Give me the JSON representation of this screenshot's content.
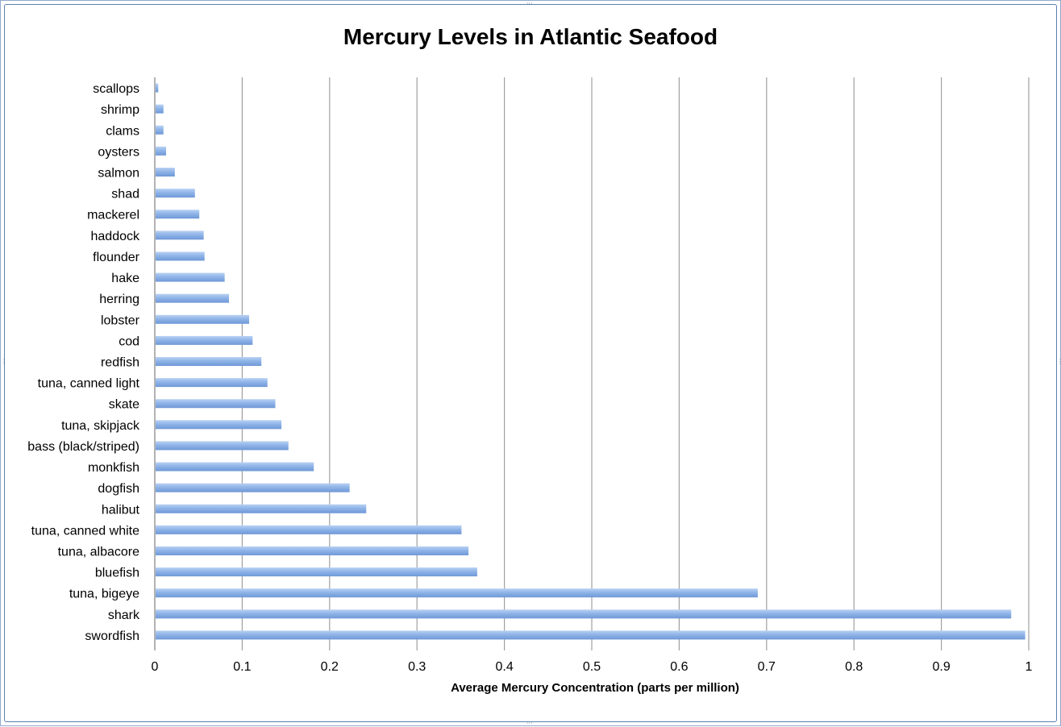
{
  "chart_data": {
    "type": "bar",
    "orientation": "horizontal",
    "title": "Mercury Levels in Atlantic Seafood",
    "xlabel": "Average Mercury Concentration (parts per million)",
    "ylabel": "",
    "xlim": [
      0,
      1
    ],
    "xticks": [
      "0",
      "0.1",
      "0.2",
      "0.3",
      "0.4",
      "0.5",
      "0.6",
      "0.7",
      "0.8",
      "0.9",
      "1"
    ],
    "grid": "vertical",
    "legend": "none",
    "bar_color": "#8fb4e8",
    "categories": [
      "scallops",
      "shrimp",
      "clams",
      "oysters",
      "salmon",
      "shad",
      "mackerel",
      "haddock",
      "flounder",
      "hake",
      "herring",
      "lobster",
      "cod",
      "redfish",
      "tuna, canned light",
      "skate",
      "tuna, skipjack",
      "bass (black/striped)",
      "monkfish",
      "dogfish",
      "halibut",
      "tuna, canned white",
      "tuna, albacore",
      "bluefish",
      "tuna, bigeye",
      "shark",
      "swordfish"
    ],
    "values": [
      0.003,
      0.009,
      0.009,
      0.012,
      0.022,
      0.045,
      0.05,
      0.055,
      0.056,
      0.079,
      0.084,
      0.107,
      0.111,
      0.121,
      0.128,
      0.137,
      0.144,
      0.152,
      0.181,
      0.222,
      0.241,
      0.35,
      0.358,
      0.368,
      0.689,
      0.979,
      0.995
    ]
  },
  "colors": {
    "frame_border": "#5b7fb0",
    "grid_line": "#a0a0a0",
    "axis_line": "#808080"
  }
}
